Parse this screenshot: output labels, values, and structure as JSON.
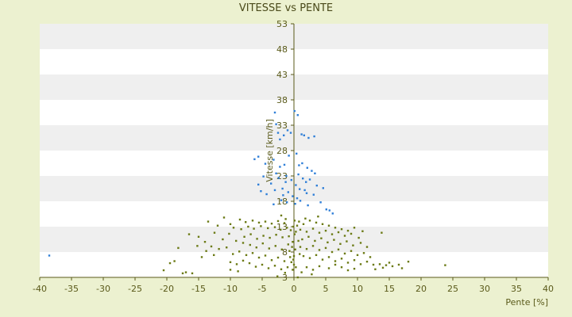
{
  "chart_data": {
    "type": "scatter",
    "title": "VITESSE vs PENTE",
    "xlabel": "Pente [%]",
    "ylabel": "Vitesse [km/h]",
    "xlim": [
      -40,
      40
    ],
    "ylim": [
      3,
      53
    ],
    "x_ticks": [
      -40,
      -35,
      -30,
      -25,
      -20,
      -15,
      -10,
      -5,
      0,
      5,
      10,
      15,
      20,
      25,
      30,
      35,
      40
    ],
    "y_ticks": [
      3,
      8,
      13,
      18,
      23,
      28,
      33,
      38,
      43,
      48,
      53
    ],
    "grid": "horizontal bands",
    "colors": {
      "background": "#ecf1d0",
      "band_light": "#ffffff",
      "band_dark": "#efefef",
      "axis": "#5a5a1a",
      "low_speed": "#6b7a14",
      "high_speed": "#2f7fd8"
    },
    "series": [
      {
        "color": "#2f7fd8",
        "points": [
          [
            -38.5,
            7.3
          ],
          [
            -3.0,
            35.5
          ],
          [
            -2.8,
            33.2
          ],
          [
            -2.5,
            31.5
          ],
          [
            -2.2,
            30.2
          ],
          [
            -1.6,
            31.0
          ],
          [
            -1.0,
            32.0
          ],
          [
            -0.5,
            31.5
          ],
          [
            0.1,
            35.8
          ],
          [
            0.6,
            35.0
          ],
          [
            1.2,
            31.2
          ],
          [
            1.6,
            31.0
          ],
          [
            2.3,
            30.5
          ],
          [
            3.2,
            30.8
          ],
          [
            -6.2,
            26.3
          ],
          [
            -5.6,
            26.8
          ],
          [
            -4.5,
            25.4
          ],
          [
            -3.2,
            26.2
          ],
          [
            -2.2,
            24.8
          ],
          [
            -1.5,
            25.2
          ],
          [
            -0.8,
            27.0
          ],
          [
            0.4,
            27.4
          ],
          [
            0.8,
            25.1
          ],
          [
            1.3,
            25.5
          ],
          [
            2.1,
            24.6
          ],
          [
            2.8,
            24.0
          ],
          [
            3.3,
            23.5
          ],
          [
            -5.6,
            21.3
          ],
          [
            -5.2,
            20.0
          ],
          [
            -4.3,
            19.4
          ],
          [
            -3.6,
            21.5
          ],
          [
            -3.0,
            20.2
          ],
          [
            -2.4,
            22.6
          ],
          [
            -1.8,
            20.5
          ],
          [
            -1.3,
            21.8
          ],
          [
            -0.9,
            19.8
          ],
          [
            -0.4,
            22.2
          ],
          [
            0.3,
            21.2
          ],
          [
            0.9,
            20.4
          ],
          [
            1.4,
            22.5
          ],
          [
            1.9,
            21.8
          ],
          [
            2.5,
            22.3
          ],
          [
            3.1,
            19.3
          ],
          [
            4.6,
            20.6
          ],
          [
            -3.2,
            17.4
          ],
          [
            -2.0,
            18.2
          ],
          [
            -1.1,
            17.8
          ],
          [
            0.2,
            17.5
          ],
          [
            1.0,
            18.1
          ],
          [
            2.2,
            17.2
          ],
          [
            4.2,
            17.8
          ],
          [
            5.1,
            16.4
          ],
          [
            5.6,
            16.2
          ],
          [
            6.1,
            15.6
          ],
          [
            -2.8,
            23.5
          ],
          [
            -1.2,
            23.0
          ],
          [
            0.7,
            23.3
          ],
          [
            1.7,
            20.2
          ],
          [
            -0.2,
            19.0
          ],
          [
            0.5,
            18.6
          ],
          [
            -1.7,
            19.2
          ],
          [
            2.0,
            19.6
          ],
          [
            -4.8,
            22.9
          ],
          [
            3.6,
            21.1
          ]
        ]
      },
      {
        "color": "#6b7a14",
        "points": [
          [
            -0.2,
            10.0
          ],
          [
            0.1,
            11.5
          ],
          [
            -0.1,
            13.0
          ],
          [
            0.2,
            8.5
          ],
          [
            0.0,
            7.2
          ],
          [
            -0.3,
            9.0
          ],
          [
            0.3,
            12.0
          ],
          [
            0.1,
            14.2
          ],
          [
            -0.1,
            6.5
          ],
          [
            0.0,
            5.5
          ],
          [
            0.6,
            3.0
          ],
          [
            -0.2,
            4.5
          ],
          [
            0.3,
            5.0
          ],
          [
            -13.5,
            14.0
          ],
          [
            -12.0,
            13.2
          ],
          [
            -11.0,
            14.8
          ],
          [
            -10.0,
            13.5
          ],
          [
            -8.5,
            14.4
          ],
          [
            -7.6,
            13.9
          ],
          [
            -6.5,
            14.2
          ],
          [
            -5.5,
            13.8
          ],
          [
            -4.5,
            14.0
          ],
          [
            -3.5,
            13.6
          ],
          [
            -2.5,
            14.1
          ],
          [
            -1.5,
            13.7
          ],
          [
            -9.5,
            12.8
          ],
          [
            -8.3,
            12.5
          ],
          [
            -7.2,
            13.0
          ],
          [
            -6.3,
            12.6
          ],
          [
            -5.2,
            13.1
          ],
          [
            -4.1,
            12.7
          ],
          [
            -3.0,
            12.9
          ],
          [
            -2.1,
            12.4
          ],
          [
            -1.1,
            12.8
          ],
          [
            -7.8,
            11.0
          ],
          [
            -6.8,
            11.5
          ],
          [
            -5.8,
            10.6
          ],
          [
            -4.8,
            11.2
          ],
          [
            -3.8,
            10.8
          ],
          [
            -2.8,
            11.4
          ],
          [
            -1.8,
            10.9
          ],
          [
            -0.8,
            11.1
          ],
          [
            -12.5,
            11.8
          ],
          [
            -11.2,
            10.5
          ],
          [
            -10.2,
            11.6
          ],
          [
            -9.1,
            10.2
          ],
          [
            -8.0,
            9.8
          ],
          [
            -6.9,
            9.4
          ],
          [
            -5.9,
            8.9
          ],
          [
            -4.9,
            9.7
          ],
          [
            -3.9,
            8.7
          ],
          [
            -2.9,
            9.2
          ],
          [
            -1.9,
            8.5
          ],
          [
            -0.9,
            9.5
          ],
          [
            -14.0,
            10.0
          ],
          [
            -13.0,
            9.1
          ],
          [
            -11.8,
            8.6
          ],
          [
            -10.6,
            8.9
          ],
          [
            -9.6,
            7.6
          ],
          [
            -8.6,
            8.1
          ],
          [
            -7.5,
            7.4
          ],
          [
            -6.5,
            7.8
          ],
          [
            -5.5,
            6.9
          ],
          [
            -4.5,
            7.3
          ],
          [
            -3.5,
            6.4
          ],
          [
            -2.5,
            6.9
          ],
          [
            -1.5,
            6.2
          ],
          [
            -0.6,
            7.0
          ],
          [
            -10.0,
            6.0
          ],
          [
            -9.0,
            5.6
          ],
          [
            -8.0,
            6.3
          ],
          [
            -7.0,
            5.8
          ],
          [
            -6.0,
            5.1
          ],
          [
            -5.0,
            5.5
          ],
          [
            -4.0,
            4.8
          ],
          [
            -3.0,
            5.3
          ],
          [
            -2.0,
            4.6
          ],
          [
            -1.0,
            5.0
          ],
          [
            -10.0,
            4.5
          ],
          [
            -8.8,
            4.2
          ],
          [
            -2.6,
            3.2
          ],
          [
            -1.4,
            3.9
          ],
          [
            -14.5,
            7.0
          ],
          [
            -12.6,
            7.4
          ],
          [
            -13.8,
            8.2
          ],
          [
            -19.5,
            5.8
          ],
          [
            -18.8,
            6.2
          ],
          [
            -20.5,
            4.4
          ],
          [
            -17.5,
            3.8
          ],
          [
            -17.0,
            4.0
          ],
          [
            -16.0,
            3.8
          ],
          [
            -15.2,
            9.2
          ],
          [
            -16.5,
            11.5
          ],
          [
            -15.0,
            11.0
          ],
          [
            -18.2,
            8.8
          ],
          [
            0.8,
            14.0
          ],
          [
            1.5,
            13.5
          ],
          [
            2.5,
            14.2
          ],
          [
            3.5,
            13.8
          ],
          [
            4.5,
            13.5
          ],
          [
            5.5,
            13.2
          ],
          [
            6.5,
            12.8
          ],
          [
            7.5,
            12.5
          ],
          [
            8.5,
            12.2
          ],
          [
            9.5,
            12.8
          ],
          [
            10.8,
            12.1
          ],
          [
            1.0,
            12.4
          ],
          [
            2.0,
            12.0
          ],
          [
            3.0,
            12.6
          ],
          [
            4.0,
            11.8
          ],
          [
            5.0,
            12.2
          ],
          [
            6.0,
            11.5
          ],
          [
            7.0,
            11.9
          ],
          [
            8.0,
            11.2
          ],
          [
            9.0,
            11.6
          ],
          [
            10.2,
            10.8
          ],
          [
            1.3,
            10.5
          ],
          [
            2.3,
            11.0
          ],
          [
            3.3,
            10.2
          ],
          [
            4.3,
            10.7
          ],
          [
            5.3,
            9.9
          ],
          [
            6.3,
            10.4
          ],
          [
            7.3,
            9.6
          ],
          [
            8.3,
            10.1
          ],
          [
            9.3,
            9.3
          ],
          [
            10.5,
            9.8
          ],
          [
            11.5,
            9.0
          ],
          [
            13.8,
            11.8
          ],
          [
            1.0,
            9.0
          ],
          [
            2.0,
            8.6
          ],
          [
            3.0,
            9.2
          ],
          [
            4.0,
            8.4
          ],
          [
            5.0,
            8.8
          ],
          [
            6.0,
            8.0
          ],
          [
            7.0,
            8.5
          ],
          [
            8.0,
            7.7
          ],
          [
            9.0,
            8.2
          ],
          [
            10.0,
            7.4
          ],
          [
            11.0,
            7.8
          ],
          [
            12.0,
            7.0
          ],
          [
            1.5,
            7.2
          ],
          [
            2.5,
            6.8
          ],
          [
            3.5,
            7.4
          ],
          [
            4.5,
            6.5
          ],
          [
            5.5,
            7.0
          ],
          [
            6.5,
            6.2
          ],
          [
            7.5,
            6.7
          ],
          [
            8.5,
            5.9
          ],
          [
            9.5,
            6.4
          ],
          [
            10.5,
            5.6
          ],
          [
            11.5,
            6.1
          ],
          [
            12.5,
            5.5
          ],
          [
            13.5,
            5.6
          ],
          [
            14.5,
            5.4
          ],
          [
            15.0,
            5.9
          ],
          [
            15.5,
            5.2
          ],
          [
            16.5,
            5.5
          ],
          [
            17.0,
            4.8
          ],
          [
            18.0,
            6.1
          ],
          [
            23.8,
            5.4
          ],
          [
            14.0,
            4.9
          ],
          [
            12.8,
            4.6
          ],
          [
            2.0,
            5.0
          ],
          [
            3.0,
            4.5
          ],
          [
            4.0,
            5.2
          ],
          [
            5.5,
            4.8
          ],
          [
            6.5,
            5.5
          ],
          [
            7.5,
            5.0
          ],
          [
            8.5,
            4.4
          ],
          [
            9.5,
            4.7
          ],
          [
            1.2,
            4.0
          ],
          [
            2.8,
            3.6
          ],
          [
            0.5,
            13.2
          ],
          [
            -0.5,
            12.3
          ],
          [
            0.7,
            10.2
          ],
          [
            -0.7,
            8.2
          ],
          [
            0.9,
            7.6
          ],
          [
            -0.4,
            6.0
          ],
          [
            1.8,
            14.6
          ],
          [
            -1.3,
            14.5
          ],
          [
            3.8,
            15.0
          ],
          [
            -2.0,
            15.2
          ]
        ]
      }
    ]
  }
}
